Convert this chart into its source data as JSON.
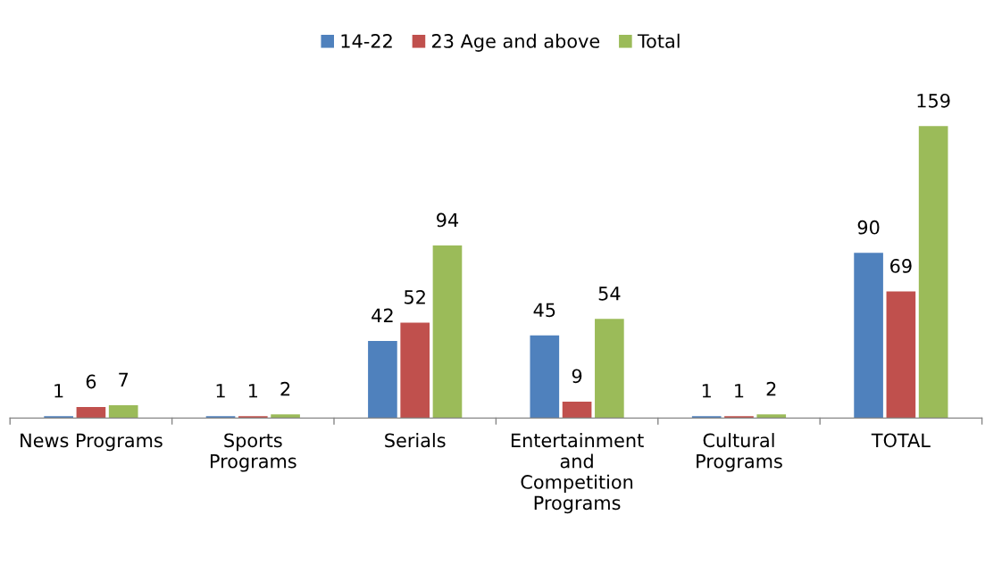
{
  "chart_data": {
    "type": "bar",
    "categories": [
      "News Programs",
      "Sports\nPrograms",
      "Serials",
      "Entertainment\nand\nCompetition\nPrograms",
      "Cultural\nPrograms",
      "TOTAL"
    ],
    "series": [
      {
        "name": "14-22",
        "color": "#4f81bd",
        "values": [
          1,
          1,
          42,
          45,
          1,
          90
        ]
      },
      {
        "name": "23 Age and above",
        "color": "#c0504d",
        "values": [
          6,
          1,
          52,
          9,
          1,
          69
        ]
      },
      {
        "name": "Total",
        "color": "#9bbb59",
        "values": [
          7,
          2,
          94,
          54,
          2,
          159
        ]
      }
    ],
    "data_labels": true,
    "legend": "top",
    "grid": false,
    "tick_labels": "x"
  }
}
